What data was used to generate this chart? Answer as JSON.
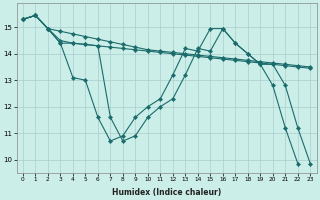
{
  "xlabel": "Humidex (Indice chaleur)",
  "bg_color": "#cceee8",
  "grid_color": "#aacccc",
  "line_color": "#1a6b6b",
  "xlim": [
    -0.5,
    23.5
  ],
  "ylim": [
    9.5,
    15.9
  ],
  "yticks": [
    10,
    11,
    12,
    13,
    14,
    15
  ],
  "xticks": [
    0,
    1,
    2,
    3,
    4,
    5,
    6,
    7,
    8,
    9,
    10,
    11,
    12,
    13,
    14,
    15,
    16,
    17,
    18,
    19,
    20,
    21,
    22,
    23
  ],
  "series": [
    {
      "x": [
        0,
        1,
        2,
        3,
        4,
        5,
        6,
        7,
        8,
        9,
        10,
        11,
        12,
        13,
        14,
        15,
        16,
        17,
        18,
        19,
        20,
        21,
        22,
        23
      ],
      "y": [
        15.3,
        15.45,
        14.95,
        14.85,
        14.75,
        14.65,
        14.55,
        14.45,
        14.35,
        14.25,
        14.15,
        14.1,
        14.05,
        14.0,
        13.95,
        13.9,
        13.85,
        13.8,
        13.75,
        13.7,
        13.65,
        13.6,
        13.55,
        13.5
      ]
    },
    {
      "x": [
        0,
        1,
        2,
        3,
        4,
        5,
        6,
        7,
        8,
        9,
        10,
        11,
        12,
        13,
        14,
        15,
        16,
        17,
        18,
        19,
        20,
        21,
        22,
        23
      ],
      "y": [
        15.3,
        15.45,
        14.95,
        14.5,
        14.4,
        14.35,
        14.3,
        14.25,
        14.2,
        14.15,
        14.1,
        14.05,
        14.0,
        13.95,
        13.9,
        13.85,
        13.8,
        13.75,
        13.7,
        13.65,
        13.6,
        13.55,
        13.5,
        13.45
      ]
    },
    {
      "x": [
        0,
        1,
        2,
        3,
        4,
        5,
        6,
        7,
        8,
        9,
        10,
        11,
        12,
        13,
        14,
        15,
        16,
        17,
        18,
        19,
        20,
        21,
        22,
        23
      ],
      "y": [
        15.3,
        15.45,
        14.95,
        14.4,
        13.1,
        13.0,
        11.6,
        10.7,
        10.9,
        11.6,
        12.0,
        12.3,
        13.2,
        14.2,
        14.1,
        14.95,
        14.95,
        14.4,
        14.0,
        13.6,
        13.6,
        12.8,
        11.2,
        9.85
      ]
    },
    {
      "x": [
        0,
        1,
        2,
        3,
        4,
        5,
        6,
        7,
        8,
        9,
        10,
        11,
        12,
        13,
        14,
        15,
        16,
        17,
        18,
        19,
        20,
        21,
        22
      ],
      "y": [
        15.3,
        15.45,
        14.95,
        14.4,
        14.4,
        14.35,
        14.3,
        11.6,
        10.7,
        10.9,
        11.6,
        12.0,
        12.3,
        13.2,
        14.2,
        14.1,
        14.95,
        14.4,
        14.0,
        13.6,
        12.8,
        11.2,
        9.85
      ]
    }
  ]
}
